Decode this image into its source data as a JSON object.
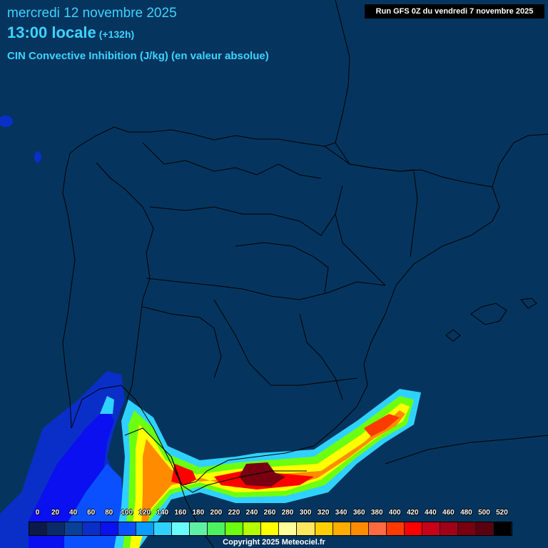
{
  "header": {
    "date": "mercredi 12 novembre 2025",
    "time": "13:00 locale",
    "lead": "(+132h)",
    "parameter": "CIN Convective Inhibition (J/kg) (en valeur absolue)"
  },
  "run": "Run GFS 0Z du vendredi 7 novembre 2025",
  "legend": {
    "labels": [
      "0",
      "20",
      "40",
      "60",
      "80",
      "100",
      "120",
      "140",
      "160",
      "180",
      "200",
      "220",
      "240",
      "260",
      "280",
      "300",
      "320",
      "340",
      "360",
      "380",
      "400",
      "420",
      "440",
      "460",
      "480",
      "500",
      "520"
    ],
    "colors": [
      "#0a1a4a",
      "#0a2a6a",
      "#08409a",
      "#0a2fc8",
      "#0a10f0",
      "#0a50ff",
      "#0a9cff",
      "#2fd2ff",
      "#6affff",
      "#5ff0a8",
      "#4cf060",
      "#6cff10",
      "#b4ff00",
      "#ffff00",
      "#ffff9a",
      "#ffe860",
      "#ffd000",
      "#ffae00",
      "#ff8c00",
      "#ff6a40",
      "#ff3a00",
      "#ff0000",
      "#c80018",
      "#a00018",
      "#780010",
      "#5a0010",
      "#000000"
    ]
  },
  "copyright": "Copyright 2025 Meteociel.fr"
}
